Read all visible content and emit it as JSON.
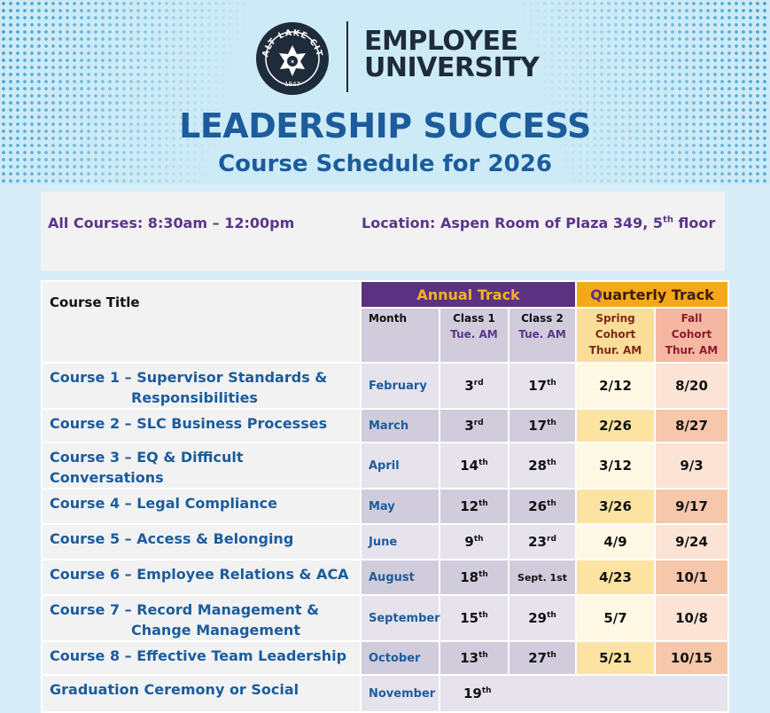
{
  "header": {
    "logo_text": "SALT LAKE CITY",
    "logo_year": "1847",
    "org_line1": "EMPLOYEE",
    "org_line2": "UNIVERSITY",
    "title": "LEADERSHIP SUCCESS",
    "subtitle": "Course Schedule for 2026",
    "colors": {
      "title": "#1c5c9d",
      "annual": "#5a3281",
      "quarterly": "#f4a81b"
    }
  },
  "info": {
    "all_courses": "All Courses:  8:30am – 12:00pm",
    "location_prefix": "Location:  Aspen Room of Plaza 349, 5",
    "location_sup": "th",
    "location_suffix": " floor"
  },
  "table": {
    "course_title_header": "Course Title",
    "annual_track": "Annual Track",
    "quarterly_track_first": "Q",
    "quarterly_track_rest": "uarterly Track",
    "month_header": "Month",
    "class1": {
      "l1": "Class 1",
      "l2": "Tue. AM"
    },
    "class2": {
      "l1": "Class 2",
      "l2": "Tue. AM"
    },
    "spring": {
      "l1": "Spring",
      "l2": "Cohort",
      "l3": "Thur. AM"
    },
    "fall": {
      "l1": "Fall",
      "l2": "Cohort",
      "l3": "Thur. AM"
    },
    "rows": [
      {
        "t1": "Course 1 – Supervisor Standards &",
        "t2": "Responsibilities",
        "month": "February",
        "c1": "3",
        "c1s": "rd",
        "c2": "17",
        "c2s": "th",
        "spring": "2/12",
        "fall": "8/20"
      },
      {
        "t1": "Course 2 – SLC Business Processes",
        "month": "March",
        "c1": "3",
        "c1s": "rd",
        "c2": "17",
        "c2s": "th",
        "spring": "2/26",
        "fall": "8/27"
      },
      {
        "t1": "Course 3 – EQ & Difficult Conversations",
        "month": "April",
        "c1": "14",
        "c1s": "th",
        "c2": "28",
        "c2s": "th",
        "spring": "3/12",
        "fall": "9/3"
      },
      {
        "t1": "Course 4 – Legal Compliance",
        "month": "May",
        "c1": "12",
        "c1s": "th",
        "c2": "26",
        "c2s": "th",
        "spring": "3/26",
        "fall": "9/17"
      },
      {
        "t1": "Course 5 – Access & Belonging",
        "month": "June",
        "c1": "9",
        "c1s": "th",
        "c2": "23",
        "c2s": "rd",
        "spring": "4/9",
        "fall": "9/24"
      },
      {
        "t1": "Course 6 – Employee Relations & ACA",
        "month": "August",
        "c1": "18",
        "c1s": "th",
        "c2": "Sept. 1st",
        "c2s": "",
        "spring": "4/23",
        "fall": "10/1"
      },
      {
        "t1": "Course 7 – Record Management &",
        "t2": "Change Management",
        "month": "September",
        "c1": "15",
        "c1s": "th",
        "c2": "29",
        "c2s": "th",
        "spring": "5/7",
        "fall": "10/8"
      },
      {
        "t1": "Course 8 – Effective Team Leadership",
        "month": "October",
        "c1": "13",
        "c1s": "th",
        "c2": "27",
        "c2s": "th",
        "spring": "5/21",
        "fall": "10/15"
      }
    ],
    "grad": {
      "title": "Graduation Ceremony or Social",
      "month": "November",
      "c1": "19",
      "c1s": "th"
    }
  }
}
